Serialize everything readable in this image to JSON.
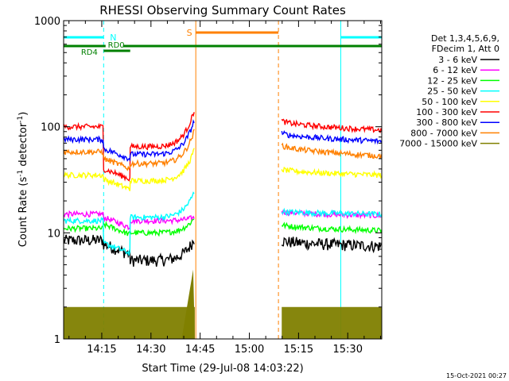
{
  "chart_data": {
    "type": "line",
    "title": "RHESSI Observing Summary Count Rates",
    "xlabel": "Start Time (29-Jul-08 14:03:22)",
    "ylabel_main": "Count Rate (s",
    "ylabel_sup1": "-1",
    "ylabel_mid": " detector",
    "ylabel_sup2": "-1",
    "ylabel_end": ")",
    "y_scale": "log",
    "ylim": [
      1,
      1000
    ],
    "xlim_minutes": [
      0,
      97
    ],
    "y_tick_labels": [
      "1",
      "10",
      "100",
      "1000"
    ],
    "y_tick_values": [
      1,
      10,
      100,
      1000
    ],
    "x_tick_labels": [
      "14:15",
      "14:30",
      "14:45",
      "15:00",
      "15:15",
      "15:30"
    ],
    "x_tick_minutes": [
      11.63,
      26.63,
      41.63,
      56.63,
      71.63,
      86.63
    ],
    "legend_header": [
      "Det 1,3,4,5,6,9,",
      "FDecim 1, Att 0"
    ],
    "series": [
      {
        "name": "3 - 6 keV",
        "color": "#000000",
        "values": {
          "start": 8.5,
          "drop": 7.8,
          "plateau_end": 5.5,
          "peak": 9.0,
          "after": 8.5,
          "after_end": 7.5
        }
      },
      {
        "name": "6 - 12 keV",
        "color": "#ff00ff",
        "values": {
          "start": 15,
          "drop": 14,
          "plateau_end": 13,
          "peak": 14,
          "after": 16,
          "after_end": 14.5
        }
      },
      {
        "name": "12 - 25 keV",
        "color": "#00ff00",
        "values": {
          "start": 11,
          "drop": 12,
          "plateau_end": 10,
          "peak": 14,
          "after": 12,
          "after_end": 10.5
        }
      },
      {
        "name": "25 - 50 keV",
        "color": "#00ffff",
        "values": {
          "start": 13,
          "drop": 8,
          "plateau_end": 14,
          "peak": 25,
          "after": 16,
          "after_end": 15
        }
      },
      {
        "name": "50 - 100 keV",
        "color": "#ffff00",
        "values": {
          "start": 35,
          "drop": 32,
          "plateau_end": 31,
          "peak": 63,
          "after": 40,
          "after_end": 35
        }
      },
      {
        "name": "100 - 300 keV",
        "color": "#ff0000",
        "values": {
          "start": 100,
          "drop": 40,
          "plateau_end": 65,
          "peak": 150,
          "after": 115,
          "after_end": 93
        }
      },
      {
        "name": "300 - 800 keV",
        "color": "#0000ff",
        "values": {
          "start": 76,
          "drop": 62,
          "plateau_end": 55,
          "peak": 120,
          "after": 88,
          "after_end": 73
        }
      },
      {
        "name": "800 - 7000 keV",
        "color": "#ff8000",
        "values": {
          "start": 58,
          "drop": 50,
          "plateau_end": 45,
          "peak": 95,
          "after": 68,
          "after_end": 53
        }
      },
      {
        "name": "7000 - 15000 keV",
        "color": "#808000",
        "values": {
          "start": 1.6,
          "drop": 1.6,
          "plateau_end": 1.6,
          "peak": 4.5,
          "after": 1.6,
          "after_end": 1.6
        }
      }
    ],
    "intervals": [
      {
        "label": "N",
        "color": "#00ffff",
        "start_min": 0,
        "end_min": 12.2
      },
      {
        "label": "",
        "color": "#00ffff",
        "start_min": 84.5,
        "end_min": 97
      }
    ],
    "annotations": [
      {
        "label": "S",
        "color": "#ff8000"
      },
      {
        "label": "RD0",
        "color": "#008000"
      },
      {
        "label": "RD4",
        "color": "#008000"
      }
    ],
    "grid": false,
    "legend_position": "right"
  },
  "footer": {
    "timestamp": "15-Oct-2021 00:27"
  }
}
